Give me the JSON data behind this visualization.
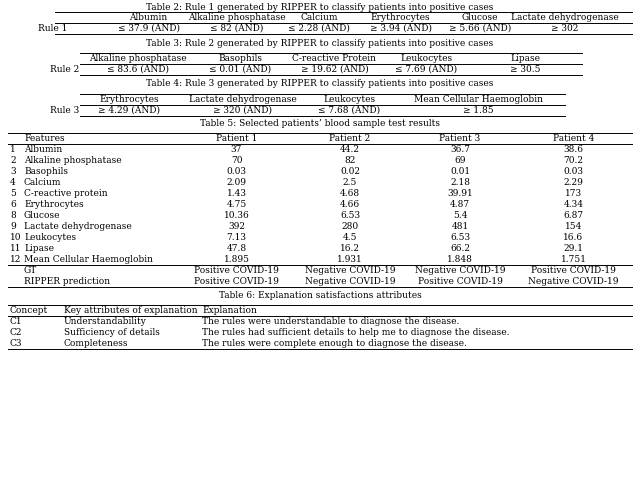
{
  "title_top": "Table 2: Rule 1 generated by RIPPER to classify patients into positive cases",
  "table2_header": [
    "Albumin",
    "Alkaline phosphatase",
    "Calcium",
    "Erythrocytes",
    "Glucose",
    "Lactate dehydrogenase"
  ],
  "table2_row_label": "Rule 1",
  "table2_row": [
    "≤ 37.9 (AND)",
    "≤ 82 (AND)",
    "≤ 2.28 (AND)",
    "≥ 3.94 (AND)",
    "≥ 5.66 (AND)",
    "≥ 302"
  ],
  "title3": "Table 3: Rule 2 generated by RIPPER to classify patients into positive cases",
  "table3_header": [
    "Alkaline phosphatase",
    "Basophils",
    "C-reactive Protein",
    "Leukocytes",
    "Lipase"
  ],
  "table3_row_label": "Rule 2",
  "table3_row": [
    "≤ 83.6 (AND)",
    "≤ 0.01 (AND)",
    "≥ 19.62 (AND)",
    "≤ 7.69 (AND)",
    "≥ 30.5"
  ],
  "title4": "Table 4: Rule 3 generated by RIPPER to classify patients into positive cases",
  "table4_header": [
    "Erythrocytes",
    "Lactate dehydrogenase",
    "Leukocytes",
    "Mean Cellular Haemoglobin"
  ],
  "table4_row_label": "Rule 3",
  "table4_row": [
    "≥ 4.29 (AND)",
    "≥ 320 (AND)",
    "≤ 7.68 (AND)",
    "≥ 1.85"
  ],
  "title5": "Table 5: Selected patients’ blood sample test results",
  "table5_header": [
    "Features",
    "Patient 1",
    "Patient 2",
    "Patient 3",
    "Patient 4"
  ],
  "table5_row_labels": [
    "1",
    "2",
    "3",
    "4",
    "5",
    "6",
    "8",
    "9",
    "10",
    "11",
    "12",
    "",
    ""
  ],
  "table5_features": [
    "Albumin",
    "Alkaline phosphatase",
    "Basophils",
    "Calcium",
    "C-reactive protein",
    "Erythrocytes",
    "Glucose",
    "Lactate dehydrogenase",
    "Leukocytes",
    "Lipase",
    "Mean Cellular Haemoglobin",
    "GT",
    "RIPPER prediction"
  ],
  "table5_p1": [
    "37",
    "70",
    "0.03",
    "2.09",
    "1.43",
    "4.75",
    "10.36",
    "392",
    "7.13",
    "47.8",
    "1.895",
    "Positive COVID-19",
    "Positive COVID-19"
  ],
  "table5_p2": [
    "44.2",
    "82",
    "0.02",
    "2.5",
    "4.68",
    "4.66",
    "6.53",
    "280",
    "4.5",
    "16.2",
    "1.931",
    "Negative COVID-19",
    "Negative COVID-19"
  ],
  "table5_p3": [
    "36.7",
    "69",
    "0.01",
    "2.18",
    "39.91",
    "4.87",
    "5.4",
    "481",
    "6.53",
    "66.2",
    "1.848",
    "Negative COVID-19",
    "Positive COVID-19"
  ],
  "table5_p4": [
    "38.6",
    "70.2",
    "0.03",
    "2.29",
    "173",
    "4.34",
    "6.87",
    "154",
    "16.6",
    "29.1",
    "1.751",
    "Positive COVID-19",
    "Negative COVID-19"
  ],
  "title6": "Table 6: Explanation satisfactions attributes",
  "table6_header": [
    "Concept",
    "Key attributes of explanation",
    "Explanation"
  ],
  "table6_rows": [
    [
      "C1",
      "Understandability",
      "The rules were understandable to diagnose the disease."
    ],
    [
      "C2",
      "Sufficiency of details",
      "The rules had sufficient details to help me to diagnose the disease."
    ],
    [
      "C3",
      "Completeness",
      "The rules were complete enough to diagnose the disease."
    ]
  ],
  "fs": 6.5,
  "rh": 11,
  "bg": "#ffffff"
}
